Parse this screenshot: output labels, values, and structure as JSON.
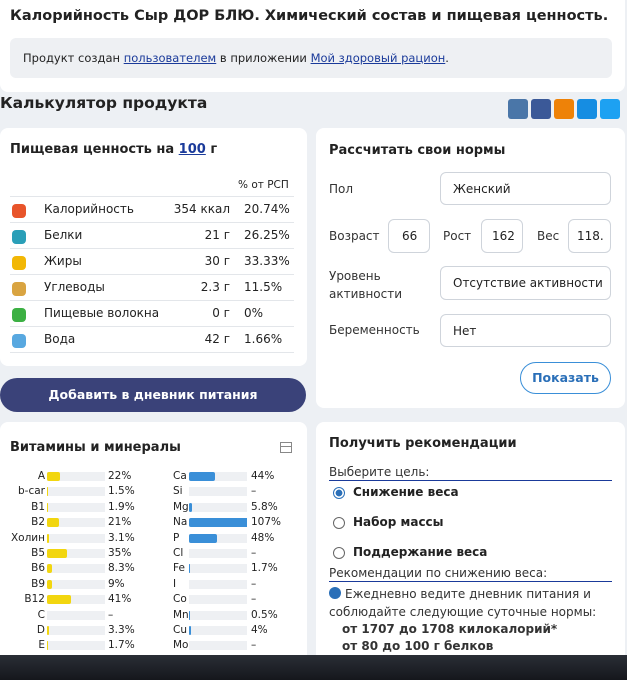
{
  "header": {
    "title": "Калорийность Сыр ДОР БЛЮ. Химический состав и пищевая ценность.",
    "note": {
      "before": "Продукт создан",
      "user_link": "пользователем",
      "middle": "в приложении",
      "app_link": "Мой здоровый рацион",
      "end": "."
    }
  },
  "calculator_title": "Калькулятор продукта",
  "nutrition": {
    "title": "Пищевая ценность на",
    "amount_link": "100",
    "unit": "г",
    "column_header": "% от РСП",
    "rows": [
      {
        "name": "Калорийность",
        "amount": "354 ккал",
        "percent": "20.74%"
      },
      {
        "name": "Белки",
        "amount": "21 г",
        "percent": "26.25%"
      },
      {
        "name": "Жиры",
        "amount": "30 г",
        "percent": "33.33%"
      },
      {
        "name": "Углеводы",
        "amount": "2.3 г",
        "percent": "11.5%"
      },
      {
        "name": "Пищевые волокна",
        "amount": "0 г",
        "percent": "0%"
      },
      {
        "name": "Вода",
        "amount": "42 г",
        "percent": "1.66%"
      }
    ]
  },
  "add_button": "Добавить в дневник питания",
  "norms": {
    "title": "Рассчитать свои нормы",
    "sex_label": "Пол",
    "sex_value": "Женский",
    "age_label": "Возраст",
    "age_value": "66",
    "height_label": "Рост",
    "height_value": "162",
    "weight_label": "Вес",
    "weight_value": "118.",
    "activity_label": "Уровень активности",
    "activity_value": "Отсутствие активности",
    "pregnancy_label": "Беременность",
    "pregnancy_value": "Нет",
    "show_button": "Показать"
  },
  "vitamins": {
    "title": "Витамины и минералы",
    "vitamins": [
      {
        "name": "A",
        "value": 22,
        "label": "22%"
      },
      {
        "name": "b-car",
        "value": 1.5,
        "label": "1.5%"
      },
      {
        "name": "B1",
        "value": 1.9,
        "label": "1.9%"
      },
      {
        "name": "B2",
        "value": 21,
        "label": "21%"
      },
      {
        "name": "Холин",
        "value": 3.1,
        "label": "3.1%"
      },
      {
        "name": "B5",
        "value": 35,
        "label": "35%"
      },
      {
        "name": "B6",
        "value": 8.3,
        "label": "8.3%"
      },
      {
        "name": "B9",
        "value": 9,
        "label": "9%"
      },
      {
        "name": "B12",
        "value": 41,
        "label": "41%"
      },
      {
        "name": "C",
        "value": null,
        "label": "–"
      },
      {
        "name": "D",
        "value": 3.3,
        "label": "3.3%"
      },
      {
        "name": "E",
        "value": 1.7,
        "label": "1.7%"
      }
    ],
    "minerals": [
      {
        "name": "Ca",
        "value": 44,
        "label": "44%"
      },
      {
        "name": "Si",
        "value": null,
        "label": "–"
      },
      {
        "name": "Mg",
        "value": 5.8,
        "label": "5.8%"
      },
      {
        "name": "Na",
        "value": 107,
        "label": "107%"
      },
      {
        "name": "P",
        "value": 48,
        "label": "48%"
      },
      {
        "name": "Cl",
        "value": null,
        "label": "–"
      },
      {
        "name": "Fe",
        "value": 1.7,
        "label": "1.7%"
      },
      {
        "name": "I",
        "value": null,
        "label": "–"
      },
      {
        "name": "Co",
        "value": null,
        "label": "–"
      },
      {
        "name": "Mn",
        "value": 0.5,
        "label": "0.5%"
      },
      {
        "name": "Cu",
        "value": 4,
        "label": "4%"
      },
      {
        "name": "Mo",
        "value": null,
        "label": "–"
      }
    ]
  },
  "recommendations": {
    "title": "Получить рекомендации",
    "goal_label": "Выберите цель:",
    "options": [
      "Снижение веса",
      "Набор массы",
      "Поддержание веса"
    ],
    "advice_title": "Рекомендации по снижению веса:",
    "advice_text": "Ежедневно ведите дневник питания и соблюдайте следующие суточные нормы:",
    "norm_calories": "от 1707 до 1708 килокалорий*",
    "norm_protein": "от 80 до 100 г белков"
  }
}
